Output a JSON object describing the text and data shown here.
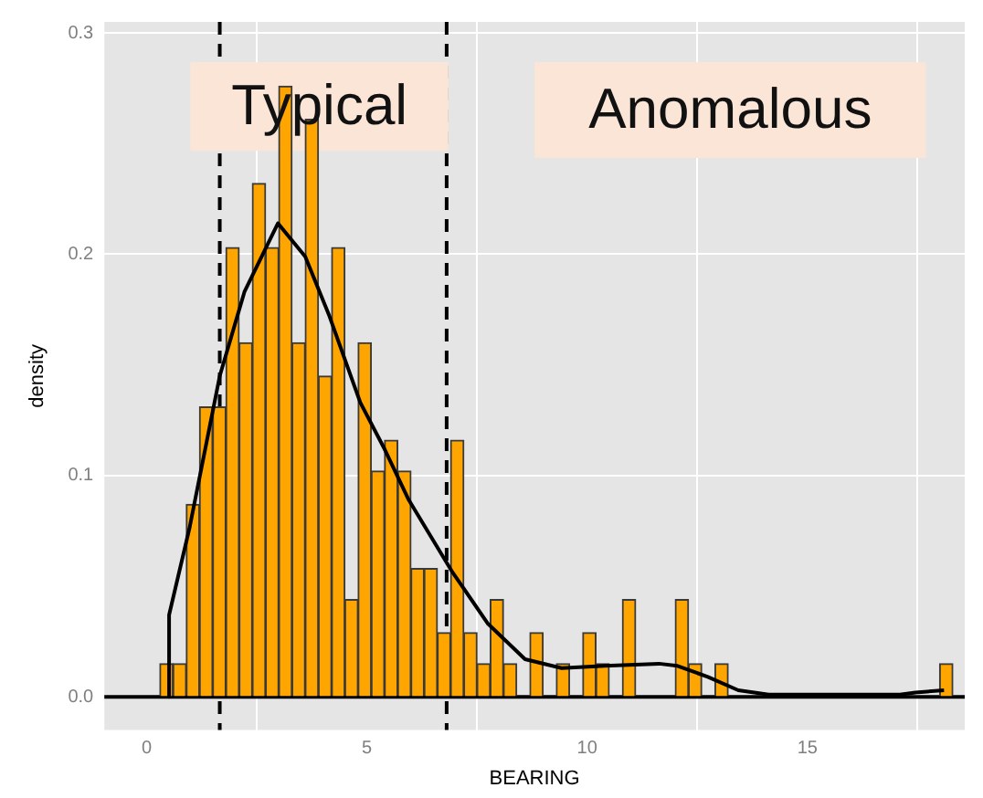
{
  "chart_data": {
    "type": "histogram",
    "xlabel": "BEARING",
    "ylabel": "density",
    "bins": [
      0.3,
      0.6,
      0.9,
      1.2,
      1.5,
      1.8,
      2.1,
      2.4,
      2.7,
      3.0,
      3.3,
      3.6,
      3.9,
      4.2,
      4.5,
      4.8,
      5.1,
      5.4,
      5.7,
      6.0,
      6.3,
      6.6,
      6.9,
      7.2,
      7.5,
      7.8,
      8.1,
      8.4,
      8.7,
      9.0,
      9.3,
      9.6,
      9.9,
      10.2,
      10.5,
      10.8,
      11.1,
      11.4,
      11.7,
      12.0,
      12.3,
      12.6,
      12.9,
      13.2,
      13.5,
      13.8,
      14.1,
      14.4,
      14.7,
      15.0,
      15.3,
      15.6,
      15.9,
      16.2,
      16.5,
      16.8,
      17.1,
      17.4,
      17.7,
      18.0,
      18.3
    ],
    "series": [
      {
        "type": "histogram",
        "color": "#ffa500",
        "values": [
          0.015,
          0.015,
          0.087,
          0.131,
          0.131,
          0.203,
          0.16,
          0.232,
          0.203,
          0.276,
          0.16,
          0.261,
          0.145,
          0.203,
          0.044,
          0.16,
          0.102,
          0.116,
          0.102,
          0.058,
          0.058,
          0.029,
          0.116,
          0.029,
          0.015,
          0.044,
          0.015,
          0,
          0.029,
          0,
          0.015,
          0,
          0.029,
          0.015,
          0,
          0.044,
          0,
          0,
          0,
          0.044,
          0.015,
          0,
          0.015,
          0,
          0,
          0,
          0,
          0,
          0,
          0,
          0,
          0,
          0,
          0,
          0,
          0,
          0,
          0,
          0,
          0.015
        ]
      },
      {
        "type": "line",
        "color": "#000000",
        "x": [
          0.5,
          0.51,
          0.97,
          1.66,
          2.22,
          2.98,
          3.6,
          4.15,
          4.85,
          5.4,
          5.95,
          6.92,
          7.75,
          8.59,
          9.42,
          10.4,
          11.63,
          12.05,
          12.74,
          13.43,
          14.12,
          17.1,
          17.45,
          18.1
        ],
        "values": [
          0,
          0.037,
          0.076,
          0.145,
          0.183,
          0.214,
          0.199,
          0.172,
          0.133,
          0.112,
          0.089,
          0.057,
          0.033,
          0.017,
          0.013,
          0.014,
          0.015,
          0.014,
          0.009,
          0.003,
          0.001,
          0.001,
          0.002,
          0.003
        ]
      }
    ],
    "xlim": [
      -0.96,
      18.57
    ],
    "xticks": [
      0,
      5,
      10,
      15
    ],
    "ylim": [
      -0.015,
      0.305
    ],
    "yticks": [
      {
        "value": 0,
        "label": "0.0"
      },
      0.1,
      0.2,
      0.3
    ],
    "ref_lines": [
      {
        "axis": "y",
        "value": 0,
        "line_style": "solid",
        "color": "#000000"
      },
      {
        "axis": "x",
        "value": 1.66,
        "line_style": "dashed",
        "color": "#000000"
      },
      {
        "axis": "x",
        "value": 6.81,
        "line_style": "dashed",
        "color": "#000000"
      }
    ],
    "annotations": [
      "Typical",
      "Anomalous"
    ],
    "grid": true,
    "legend": false
  }
}
